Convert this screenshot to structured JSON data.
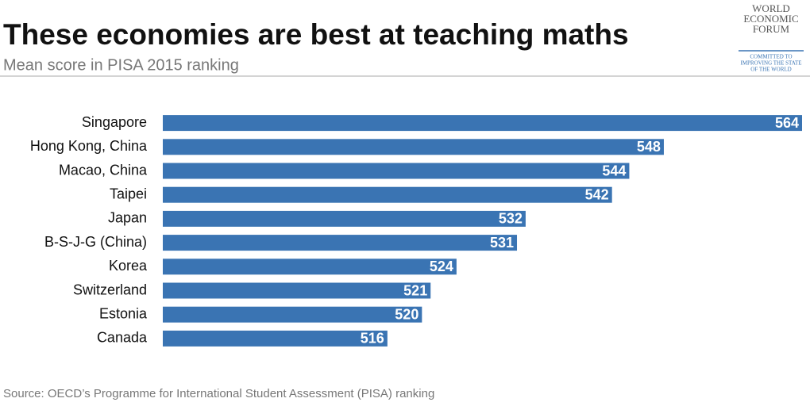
{
  "chart_data": {
    "type": "bar",
    "orientation": "horizontal",
    "title": "These economies are best at teaching maths",
    "subtitle": "Mean score in PISA 2015 ranking",
    "source": "Source: OECD’s Programme for International Student Assessment (PISA) ranking",
    "categories": [
      "Singapore",
      "Hong Kong, China",
      "Macao, China",
      "Taipei",
      "Japan",
      "B-S-J-G (China)",
      "Korea",
      "Switzerland",
      "Estonia",
      "Canada"
    ],
    "values": [
      564,
      548,
      544,
      542,
      532,
      531,
      524,
      521,
      520,
      516
    ],
    "color": "#3a74b3",
    "xlim": [
      490,
      564
    ]
  },
  "logo": {
    "name": [
      "WORLD",
      "ECONOMIC",
      "FORUM"
    ],
    "tagline": [
      "COMMITTED TO",
      "IMPROVING THE STATE",
      "OF THE WORLD"
    ]
  }
}
